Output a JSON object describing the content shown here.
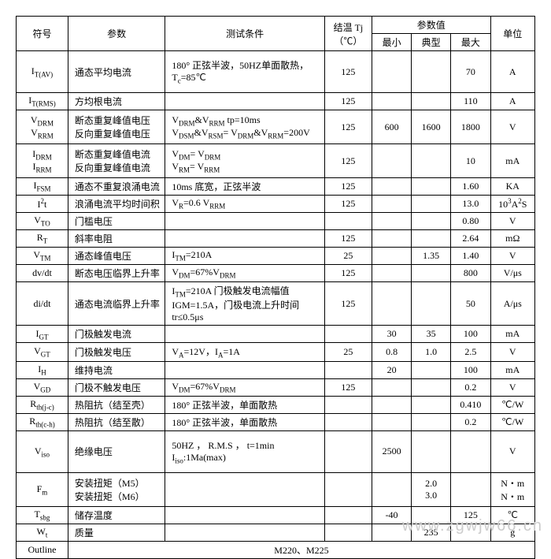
{
  "head": {
    "sym": "符号",
    "param": "参数",
    "cond": "测试条件",
    "tj": "结温\nTj（℃）",
    "vals": "参数值",
    "min": "最小",
    "typ": "典型",
    "max": "最大",
    "unit": "单位"
  },
  "r": [
    {
      "sym": "I_T(AV)",
      "param": "通态平均电流",
      "cond": "180° 正弦半波，50HZ单面散热，T_c=85℃",
      "tj": "125",
      "min": "",
      "typ": "",
      "max": "70",
      "unit": "A"
    },
    {
      "sym": "I_T(RMS)",
      "param": "方均根电流",
      "cond": "",
      "tj": "125",
      "min": "",
      "typ": "",
      "max": "110",
      "unit": "A"
    },
    {
      "sym": [
        "V_DRM",
        "V_RRM"
      ],
      "param": [
        "断态重复峰值电压",
        "反向重复峰值电压"
      ],
      "cond": "V_DRM&V_RRM  tp=10ms\nV_DSM&V_RSM= V_DRM&V_RRM=200V",
      "tj": "125",
      "min": "600",
      "typ": "1600",
      "max": "1800",
      "unit": "V"
    },
    {
      "sym": [
        "I_DRM",
        "I_RRM"
      ],
      "param": [
        "断态重复峰值电流",
        "反向重复峰值电流"
      ],
      "cond": "V_DM= V_DRM\nV_RM= V_RRM",
      "tj": "125",
      "min": "",
      "typ": "",
      "max": "10",
      "unit": "mA"
    },
    {
      "sym": "I_FSM",
      "param": "通态不重复浪涌电流",
      "cond": "10ms 底宽，正弦半波",
      "tj": "125",
      "min": "",
      "typ": "",
      "max": "1.60",
      "unit": "KA"
    },
    {
      "sym": "I²t",
      "param": "浪涌电流平均时间积",
      "cond": "V_R=0.6 V_RRM",
      "tj": "125",
      "min": "",
      "typ": "",
      "max": "13.0",
      "unit": "10³A²S"
    },
    {
      "sym": "V_TO",
      "param": "门槛电压",
      "cond": "",
      "tj": "",
      "min": "",
      "typ": "",
      "max": "0.80",
      "unit": "V"
    },
    {
      "sym": "R_T",
      "param": "斜率电阻",
      "cond": "",
      "tj": "125",
      "min": "",
      "typ": "",
      "max": "2.64",
      "unit": "mΩ"
    },
    {
      "sym": "V_TM",
      "param": "通态峰值电压",
      "cond": "I_TM=210A",
      "tj": "25",
      "min": "",
      "typ": "1.35",
      "max": "1.40",
      "unit": "V"
    },
    {
      "sym": "dv/dt",
      "param": "断态电压临界上升率",
      "cond": "V_DM=67%V_DRM",
      "tj": "125",
      "min": "",
      "typ": "",
      "max": "800",
      "unit": "V/μs"
    },
    {
      "sym": "di/dt",
      "param": "通态电流临界上升率",
      "cond": "I_TM=210A  门极触发电流幅值IGM=1.5A，门极电流上升时间tr≤0.5μs",
      "tj": "125",
      "min": "",
      "typ": "",
      "max": "50",
      "unit": "A/μs"
    },
    {
      "sym": "I_GT",
      "param": "门极触发电流",
      "cond": "",
      "tj": "",
      "min": "30",
      "typ": "35",
      "max": "100",
      "unit": "mA"
    },
    {
      "sym": "V_GT",
      "param": "门极触发电压",
      "cond": "V_A=12V，I_A=1A",
      "tj": "25",
      "min": "0.8",
      "typ": "1.0",
      "max": "2.5",
      "unit": "V"
    },
    {
      "sym": "I_H",
      "param": "维持电流",
      "cond": "",
      "tj": "",
      "min": "20",
      "typ": "",
      "max": "100",
      "unit": "mA"
    },
    {
      "sym": "V_GD",
      "param": "门极不触发电压",
      "cond": "V_DM=67%V_DRM",
      "tj": "125",
      "min": "",
      "typ": "",
      "max": "0.2",
      "unit": "V"
    },
    {
      "sym": "R_th(j-c)",
      "param": "热阻抗（结至壳）",
      "cond": "180° 正弦半波，单面散热",
      "tj": "",
      "min": "",
      "typ": "",
      "max": "0.410",
      "unit": "℃/W"
    },
    {
      "sym": "R_th(c-h)",
      "param": "热阻抗（结至散）",
      "cond": "180° 正弦半波，单面散热",
      "tj": "",
      "min": "",
      "typ": "",
      "max": "0.2",
      "unit": "℃/W"
    },
    {
      "sym": "V_iso",
      "param": "绝缘电压",
      "cond": "50HZ ， R.M.S ， t=1min\nI_iso:1Ma(max)",
      "tj": "",
      "min": "2500",
      "typ": "",
      "max": "",
      "unit": "V"
    },
    {
      "sym": "F_m",
      "param": [
        "安装扭矩（M5）",
        "安装扭矩（M6）"
      ],
      "cond": "",
      "tj": "",
      "min": "",
      "typ": [
        "2.0",
        "3.0"
      ],
      "max": "",
      "unit": [
        "N・m",
        "N・m"
      ]
    },
    {
      "sym": "T_sbg",
      "param": "储存温度",
      "cond": "",
      "tj": "",
      "min": "-40",
      "typ": "",
      "max": "125",
      "unit": "℃"
    },
    {
      "sym": "W_t",
      "param": "质量",
      "cond": "",
      "tj": "",
      "min": "",
      "typ": "235",
      "max": "",
      "unit": "g"
    },
    {
      "sym": "Outline",
      "param": "",
      "cond": "M220、M225",
      "tj": "",
      "min": "",
      "typ": "",
      "max": "",
      "unit": "",
      "span": true
    }
  ],
  "watermark": "www.zgwjw66.cn"
}
